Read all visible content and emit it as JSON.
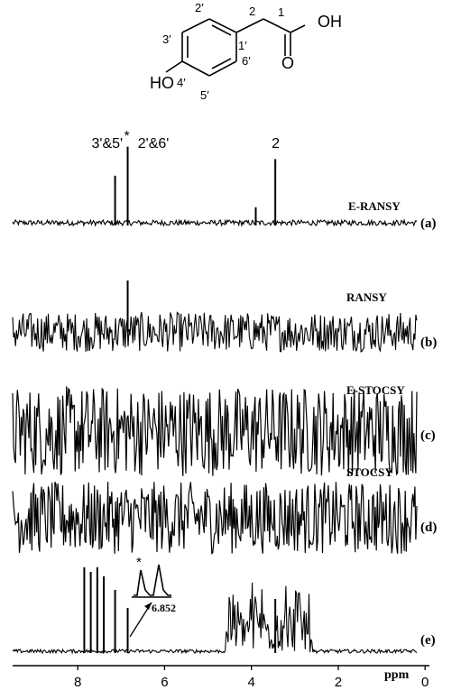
{
  "molecule": {
    "atom_labels": [
      "2′",
      "2",
      "1",
      "OH",
      "3′",
      "1′",
      "6′",
      "HO",
      "4′",
      "5′"
    ],
    "bond_label_o": "O"
  },
  "chart_data": {
    "type": "line",
    "xlabel": "ppm",
    "xlim": [
      9.5,
      -0.1
    ],
    "x_ticks": [
      "8",
      "6",
      "4",
      "2",
      "0"
    ],
    "x_tick_values": [
      8,
      6,
      4,
      2,
      0
    ],
    "panels": [
      {
        "id": "a",
        "panel_label": "(a)",
        "method": "E-RANSY",
        "peak_labels": [
          {
            "text": "3'&5'",
            "ppm": 7.1
          },
          {
            "text": "*",
            "ppm": 6.85
          },
          {
            "text": "2'&6'",
            "ppm": 6.7
          },
          {
            "text": "2",
            "ppm": 3.45
          }
        ],
        "peaks": [
          {
            "ppm": 7.14,
            "height": 0.6
          },
          {
            "ppm": 6.85,
            "height": 0.95
          },
          {
            "ppm": 3.45,
            "height": 0.8
          },
          {
            "ppm": 3.9,
            "height": 0.22
          }
        ]
      },
      {
        "id": "b",
        "panel_label": "(b)",
        "method": "RANSY",
        "peaks": [
          {
            "ppm": 6.85,
            "height": 0.95
          }
        ]
      },
      {
        "id": "c",
        "panel_label": "(c)",
        "method": "E-STOCSY",
        "peaks": []
      },
      {
        "id": "d",
        "panel_label": "(d)",
        "method": "STOCSY",
        "peaks": []
      },
      {
        "id": "e",
        "panel_label": "(e)",
        "method": "",
        "inset_star": "*",
        "inset_value": "6.852",
        "peaks": [
          {
            "ppm": 7.85,
            "height": 0.95
          },
          {
            "ppm": 7.7,
            "height": 0.9
          },
          {
            "ppm": 7.55,
            "height": 0.95
          },
          {
            "ppm": 7.4,
            "height": 0.85
          },
          {
            "ppm": 7.14,
            "height": 0.7
          },
          {
            "ppm": 6.85,
            "height": 0.5
          },
          {
            "ppm": 3.45,
            "height": 0.6
          }
        ]
      }
    ]
  }
}
